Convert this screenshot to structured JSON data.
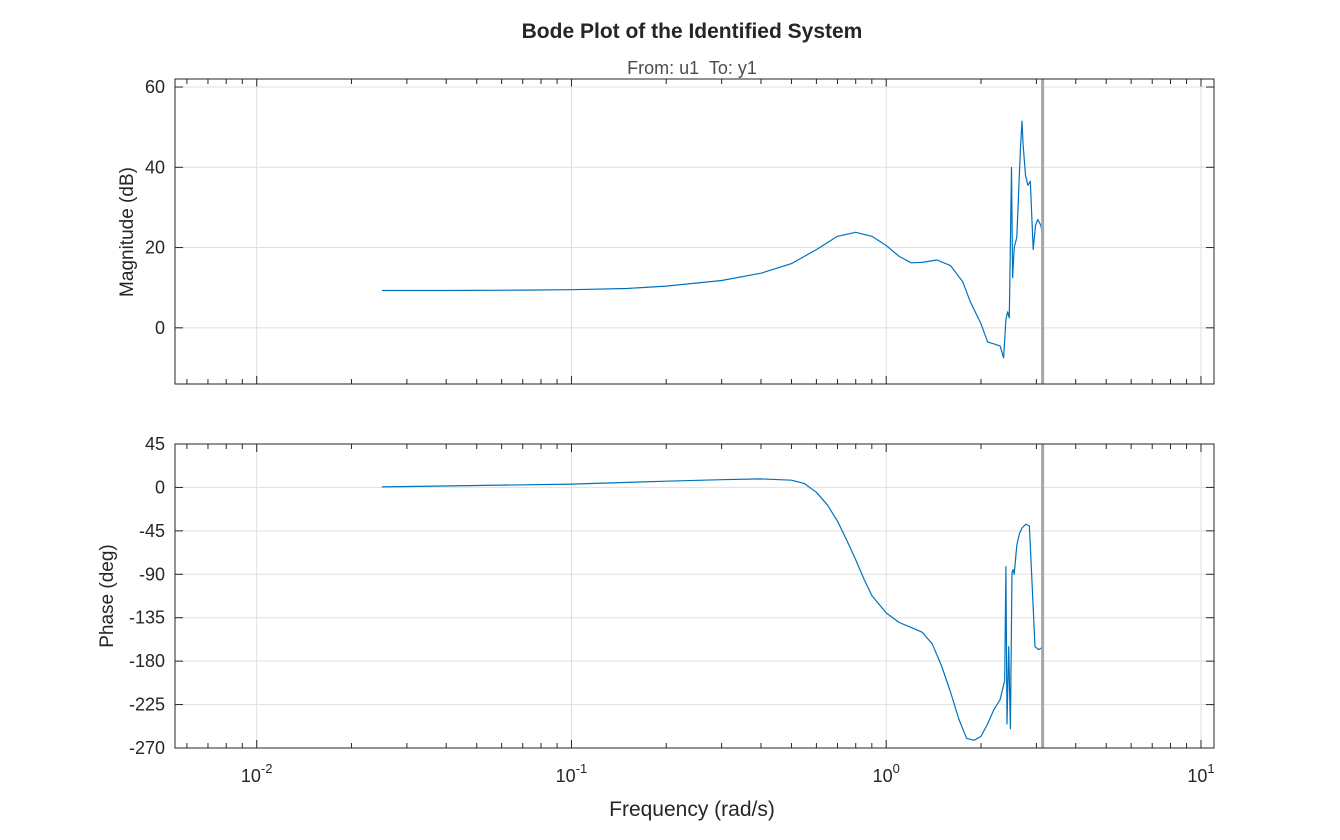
{
  "chart_data": {
    "type": "line",
    "title": "Bode Plot of the Identified System",
    "subtitle": "From: u1  To: y1",
    "xlabel": "Frequency (rad/s)",
    "xscale": "log",
    "xlim": [
      0.0055,
      11
    ],
    "x_ticks": [
      {
        "base": "10",
        "exp": "-2",
        "value": 0.01
      },
      {
        "base": "10",
        "exp": "-1",
        "value": 0.1
      },
      {
        "base": "10",
        "exp": "0",
        "value": 1
      },
      {
        "base": "10",
        "exp": "1",
        "value": 10
      }
    ],
    "grid": true,
    "line_color": "#0072bd",
    "nyquist_color": "#a6a6a6",
    "nyquist_frequency": 3.14,
    "panels": [
      {
        "name": "magnitude",
        "ylabel": "Magnitude (dB)",
        "ylim": [
          -14,
          62
        ],
        "yticks": [
          "60",
          "40",
          "20",
          "0"
        ],
        "ytick_values": [
          60,
          40,
          20,
          0
        ],
        "points": [
          [
            0.025,
            9.3
          ],
          [
            0.04,
            9.3
          ],
          [
            0.07,
            9.4
          ],
          [
            0.1,
            9.5
          ],
          [
            0.15,
            9.8
          ],
          [
            0.2,
            10.4
          ],
          [
            0.3,
            11.8
          ],
          [
            0.4,
            13.6
          ],
          [
            0.5,
            16.0
          ],
          [
            0.6,
            19.5
          ],
          [
            0.7,
            22.8
          ],
          [
            0.8,
            23.8
          ],
          [
            0.9,
            22.8
          ],
          [
            1.0,
            20.5
          ],
          [
            1.1,
            17.8
          ],
          [
            1.2,
            16.2
          ],
          [
            1.3,
            16.3
          ],
          [
            1.45,
            16.9
          ],
          [
            1.6,
            15.5
          ],
          [
            1.75,
            11.5
          ],
          [
            1.85,
            6.5
          ],
          [
            2.0,
            1.0
          ],
          [
            2.1,
            -3.5
          ],
          [
            2.2,
            -4.0
          ],
          [
            2.3,
            -4.5
          ],
          [
            2.36,
            -7.5
          ],
          [
            2.4,
            2.0
          ],
          [
            2.43,
            4.0
          ],
          [
            2.46,
            2.5
          ],
          [
            2.5,
            40.0
          ],
          [
            2.52,
            12.5
          ],
          [
            2.55,
            20.0
          ],
          [
            2.6,
            22.5
          ],
          [
            2.67,
            45.0
          ],
          [
            2.7,
            51.5
          ],
          [
            2.72,
            46.0
          ],
          [
            2.77,
            38.0
          ],
          [
            2.82,
            35.5
          ],
          [
            2.87,
            36.5
          ],
          [
            2.93,
            19.5
          ],
          [
            2.98,
            25.5
          ],
          [
            3.03,
            27.0
          ],
          [
            3.1,
            25.5
          ],
          [
            3.14,
            23.0
          ]
        ]
      },
      {
        "name": "phase",
        "ylabel": "Phase (deg)",
        "ylim": [
          -270,
          45
        ],
        "yticks": [
          "45",
          "0",
          "-45",
          "-90",
          "-135",
          "-180",
          "-225",
          "-270"
        ],
        "ytick_values": [
          45,
          0,
          -45,
          -90,
          -135,
          -180,
          -225,
          -270
        ],
        "points": [
          [
            0.025,
            0.5
          ],
          [
            0.05,
            2.0
          ],
          [
            0.1,
            3.5
          ],
          [
            0.2,
            6.5
          ],
          [
            0.3,
            8.0
          ],
          [
            0.4,
            8.8
          ],
          [
            0.5,
            7.5
          ],
          [
            0.55,
            4.0
          ],
          [
            0.6,
            -5.0
          ],
          [
            0.65,
            -18.0
          ],
          [
            0.7,
            -35.0
          ],
          [
            0.75,
            -55.0
          ],
          [
            0.8,
            -75.0
          ],
          [
            0.85,
            -95.0
          ],
          [
            0.9,
            -112.0
          ],
          [
            1.0,
            -130.0
          ],
          [
            1.1,
            -140.0
          ],
          [
            1.2,
            -145.0
          ],
          [
            1.3,
            -150.0
          ],
          [
            1.4,
            -162.0
          ],
          [
            1.5,
            -185.0
          ],
          [
            1.6,
            -212.0
          ],
          [
            1.7,
            -240.0
          ],
          [
            1.8,
            -260.0
          ],
          [
            1.9,
            -262.0
          ],
          [
            2.0,
            -258.0
          ],
          [
            2.1,
            -245.0
          ],
          [
            2.2,
            -230.0
          ],
          [
            2.3,
            -220.0
          ],
          [
            2.38,
            -200.0
          ],
          [
            2.4,
            -82.0
          ],
          [
            2.42,
            -245.0
          ],
          [
            2.45,
            -165.0
          ],
          [
            2.48,
            -250.0
          ],
          [
            2.51,
            -88.0
          ],
          [
            2.53,
            -85.0
          ],
          [
            2.55,
            -90.0
          ],
          [
            2.6,
            -60.0
          ],
          [
            2.65,
            -48.0
          ],
          [
            2.7,
            -42.0
          ],
          [
            2.78,
            -38.0
          ],
          [
            2.85,
            -40.0
          ],
          [
            2.93,
            -125.0
          ],
          [
            2.97,
            -165.0
          ],
          [
            3.05,
            -168.0
          ],
          [
            3.12,
            -166.0
          ],
          [
            3.14,
            -180.0
          ]
        ]
      }
    ]
  }
}
